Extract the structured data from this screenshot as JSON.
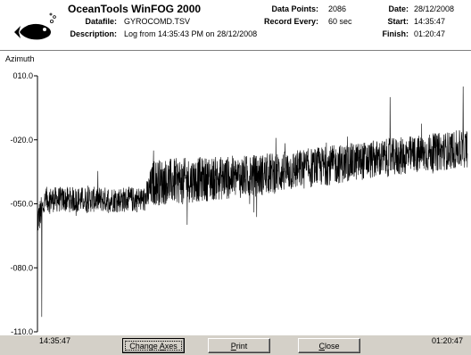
{
  "header": {
    "app_title": "OceanTools WinFOG 2000",
    "datafile_label": "Datafile:",
    "datafile_value": "GYROCOMD.TSV",
    "description_label": "Description:",
    "description_value": "Log from 14:35:43 PM on 28/12/2008",
    "data_points_label": "Data Points:",
    "data_points_value": "2086",
    "record_every_label": "Record Every:",
    "record_every_value": "60 sec",
    "date_label": "Date:",
    "date_value": "28/12/2008",
    "start_label": "Start:",
    "start_value": "14:35:47",
    "finish_label": "Finish:",
    "finish_value": "01:20:47"
  },
  "buttons": {
    "change_axes_pre": "Change ",
    "change_axes_key": "A",
    "change_axes_post": "xes",
    "print_key": "P",
    "print_post": "rint",
    "close_key": "C",
    "close_post": "lose"
  },
  "colors": {
    "series": "#000000",
    "background": "#ffffff",
    "chrome": "#d4d0c8"
  },
  "chart_data": {
    "type": "line",
    "ylabel": "Azimuth",
    "yticks": [
      "010.0",
      "-020.0",
      "-050.0",
      "-080.0",
      "-110.0"
    ],
    "ytick_values": [
      10,
      -20,
      -50,
      -80,
      -110
    ],
    "ylim": [
      -110,
      10
    ],
    "x_start_label": "14:35:47",
    "x_end_label": "01:20:47",
    "grid": false,
    "legend": "none",
    "series": [
      {
        "points": 2086,
        "trend_x": [
          0,
          0.02,
          0.25,
          0.27,
          0.5,
          0.75,
          1.0
        ],
        "trend_y": [
          -58,
          -48,
          -48,
          -40,
          -37,
          -30,
          -24
        ],
        "noise_amplitude": [
          8,
          6,
          6,
          11,
          10,
          9,
          9
        ],
        "noted_extremes": [
          {
            "x": 0.01,
            "y": -103
          },
          {
            "x": 0.27,
            "y": -25
          },
          {
            "x": 0.82,
            "y": 0
          },
          {
            "x": 0.99,
            "y": 5
          }
        ]
      }
    ]
  }
}
